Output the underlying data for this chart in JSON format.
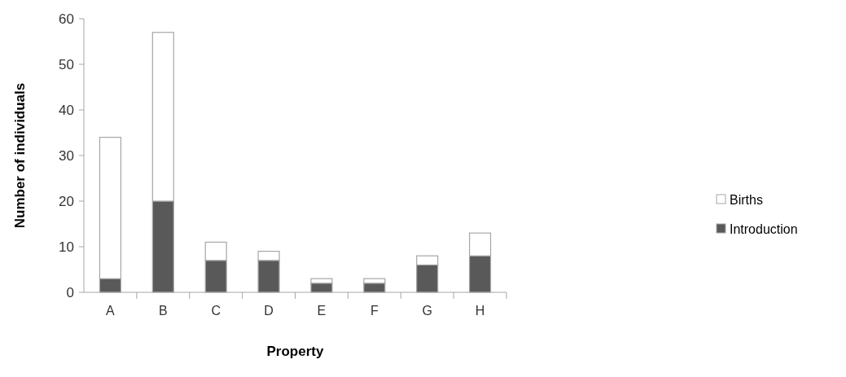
{
  "chart_data": {
    "type": "bar",
    "stacked": true,
    "xlabel": "Property",
    "ylabel": "Number of individuals",
    "categories": [
      "A",
      "B",
      "C",
      "D",
      "E",
      "F",
      "G",
      "H"
    ],
    "series": [
      {
        "name": "Introduction",
        "color": "#595959",
        "values": [
          3,
          20,
          7,
          7,
          2,
          2,
          6,
          8
        ]
      },
      {
        "name": "Births",
        "color": "#ffffff",
        "values": [
          31,
          37,
          4,
          2,
          1,
          1,
          2,
          5
        ]
      }
    ],
    "ylim": [
      0,
      60
    ],
    "yticks": [
      0,
      10,
      20,
      30,
      40,
      50,
      60
    ],
    "grid": false,
    "legend": "right"
  }
}
